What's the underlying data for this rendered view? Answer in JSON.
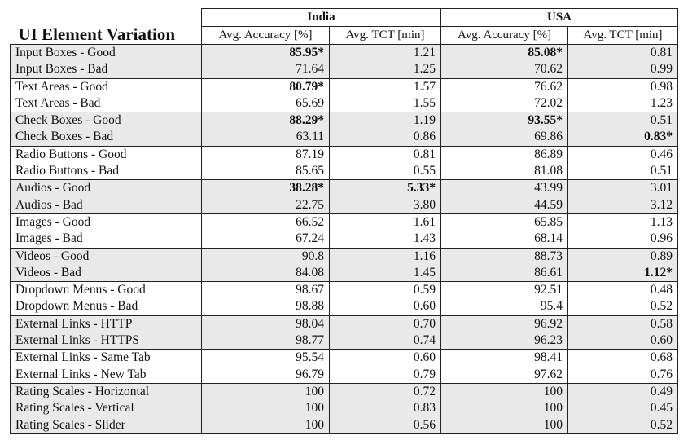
{
  "table": {
    "title": "UI Element Variation",
    "groups": [
      "India",
      "USA"
    ],
    "subheaders": [
      "Avg. Accuracy [%]",
      "Avg. TCT [min]",
      "Avg. Accuracy [%]",
      "Avg. TCT [min]"
    ],
    "rows": [
      {
        "label": "Input Boxes - Good",
        "values": [
          "85.95*",
          "1.21",
          "85.08*",
          "0.81"
        ],
        "bold": [
          true,
          false,
          true,
          false
        ]
      },
      {
        "label": "Input Boxes - Bad",
        "values": [
          "71.64",
          "1.25",
          "70.62",
          "0.99"
        ],
        "bold": [
          false,
          false,
          false,
          false
        ]
      },
      {
        "label": "Text Areas - Good",
        "values": [
          "80.79*",
          "1.57",
          "76.62",
          "0.98"
        ],
        "bold": [
          true,
          false,
          false,
          false
        ]
      },
      {
        "label": "Text Areas - Bad",
        "values": [
          "65.69",
          "1.55",
          "72.02",
          "1.23"
        ],
        "bold": [
          false,
          false,
          false,
          false
        ]
      },
      {
        "label": "Check Boxes - Good",
        "values": [
          "88.29*",
          "1.19",
          "93.55*",
          "0.51"
        ],
        "bold": [
          true,
          false,
          true,
          false
        ]
      },
      {
        "label": "Check Boxes - Bad",
        "values": [
          "63.11",
          "0.86",
          "69.86",
          "0.83*"
        ],
        "bold": [
          false,
          false,
          false,
          true
        ]
      },
      {
        "label": "Radio Buttons - Good",
        "values": [
          "87.19",
          "0.81",
          "86.89",
          "0.46"
        ],
        "bold": [
          false,
          false,
          false,
          false
        ]
      },
      {
        "label": "Radio Buttons - Bad",
        "values": [
          "85.65",
          "0.55",
          "81.08",
          "0.51"
        ],
        "bold": [
          false,
          false,
          false,
          false
        ]
      },
      {
        "label": "Audios - Good",
        "values": [
          "38.28*",
          "5.33*",
          "43.99",
          "3.01"
        ],
        "bold": [
          true,
          true,
          false,
          false
        ]
      },
      {
        "label": "Audios - Bad",
        "values": [
          "22.75",
          "3.80",
          "44.59",
          "3.12"
        ],
        "bold": [
          false,
          false,
          false,
          false
        ]
      },
      {
        "label": "Images - Good",
        "values": [
          "66.52",
          "1.61",
          "65.85",
          "1.13"
        ],
        "bold": [
          false,
          false,
          false,
          false
        ]
      },
      {
        "label": "Images - Bad",
        "values": [
          "67.24",
          "1.43",
          "68.14",
          "0.96"
        ],
        "bold": [
          false,
          false,
          false,
          false
        ]
      },
      {
        "label": "Videos - Good",
        "values": [
          "90.8",
          "1.16",
          "88.73",
          "0.89"
        ],
        "bold": [
          false,
          false,
          false,
          false
        ]
      },
      {
        "label": "Videos - Bad",
        "values": [
          "84.08",
          "1.45",
          "86.61",
          "1.12*"
        ],
        "bold": [
          false,
          false,
          false,
          true
        ]
      },
      {
        "label": "Dropdown Menus - Good",
        "values": [
          "98.67",
          "0.59",
          "92.51",
          "0.48"
        ],
        "bold": [
          false,
          false,
          false,
          false
        ]
      },
      {
        "label": "Dropdown Menus - Bad",
        "values": [
          "98.88",
          "0.60",
          "95.4",
          "0.52"
        ],
        "bold": [
          false,
          false,
          false,
          false
        ]
      },
      {
        "label": "External Links - HTTP",
        "values": [
          "98.04",
          "0.70",
          "96.92",
          "0.58"
        ],
        "bold": [
          false,
          false,
          false,
          false
        ]
      },
      {
        "label": "External Links - HTTPS",
        "values": [
          "98.77",
          "0.74",
          "96.23",
          "0.60"
        ],
        "bold": [
          false,
          false,
          false,
          false
        ]
      },
      {
        "label": "External Links - Same Tab",
        "values": [
          "95.54",
          "0.60",
          "98.41",
          "0.68"
        ],
        "bold": [
          false,
          false,
          false,
          false
        ]
      },
      {
        "label": "External Links - New Tab",
        "values": [
          "96.79",
          "0.79",
          "97.62",
          "0.76"
        ],
        "bold": [
          false,
          false,
          false,
          false
        ]
      },
      {
        "label": "Rating Scales - Horizontal",
        "values": [
          "100",
          "0.72",
          "100",
          "0.49"
        ],
        "bold": [
          false,
          false,
          false,
          false
        ]
      },
      {
        "label": "Rating Scales - Vertical",
        "values": [
          "100",
          "0.83",
          "100",
          "0.45"
        ],
        "bold": [
          false,
          false,
          false,
          false
        ]
      },
      {
        "label": "Rating Scales - Slider",
        "values": [
          "100",
          "0.56",
          "100",
          "0.52"
        ],
        "bold": [
          false,
          false,
          false,
          false
        ]
      }
    ],
    "group_sizes": [
      2,
      2,
      2,
      2,
      2,
      2,
      2,
      2,
      2,
      2,
      3
    ],
    "shade_color": "#e9e9e9"
  }
}
